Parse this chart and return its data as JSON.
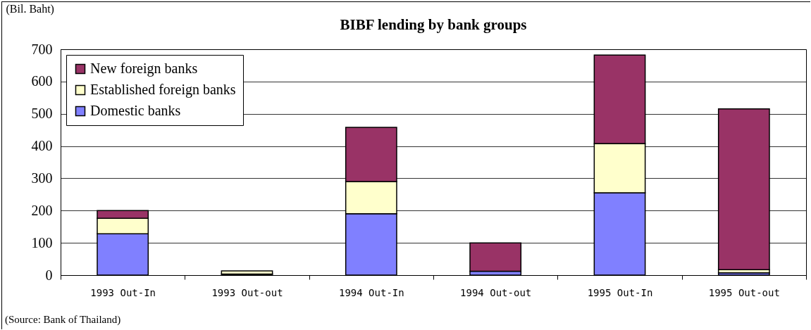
{
  "chart_data": {
    "type": "bar",
    "title": "BIBF lending by bank groups",
    "ylabel": "(Bil. Baht)",
    "categories": [
      "1993 Out-In",
      "1993 Out-out",
      "1994 Out-In",
      "1994 Out-out",
      "1995 Out-In",
      "1995 Out-out"
    ],
    "series": [
      {
        "name": "Domestic banks",
        "color": "#8080ff",
        "values": [
          128,
          3,
          190,
          12,
          255,
          7
        ]
      },
      {
        "name": "Established foreign banks",
        "color": "#ffffcc",
        "values": [
          48,
          10,
          100,
          0,
          153,
          10
        ]
      },
      {
        "name": "New foreign banks",
        "color": "#993366",
        "values": [
          24,
          0,
          168,
          88,
          274,
          498
        ]
      }
    ],
    "stacked": true,
    "ylim": [
      0,
      700
    ],
    "yticks": [
      0,
      100,
      200,
      300,
      400,
      500,
      600,
      700
    ],
    "grid": "y",
    "legend": "top left",
    "annotations": [
      "(Source: Bank of Thailand)"
    ]
  }
}
